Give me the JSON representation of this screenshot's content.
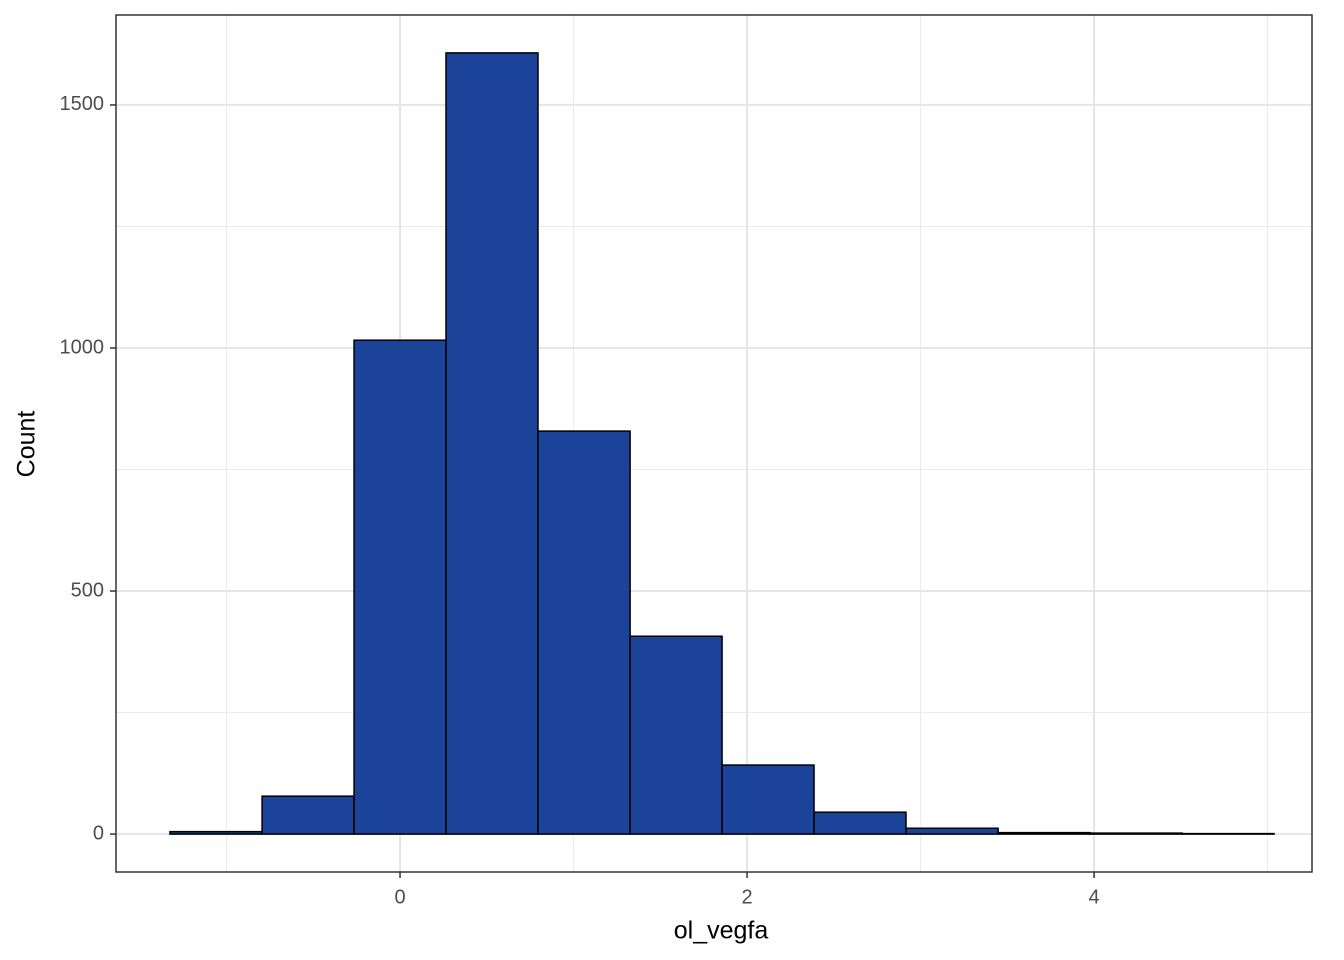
{
  "chart_data": {
    "type": "histogram",
    "x_label": "ol_vegfa",
    "y_label": "Count",
    "bins": [
      -1.326,
      -0.795,
      -0.265,
      0.265,
      0.795,
      1.326,
      1.856,
      2.386,
      2.916,
      3.447,
      3.977,
      4.507,
      5.037
    ],
    "values": [
      5,
      78,
      1016,
      1607,
      829,
      407,
      142,
      45,
      12,
      3,
      2,
      1
    ],
    "color": "#1b4399",
    "xlim": [
      -1.637,
      5.256
    ],
    "ylim": [
      -78,
      1685
    ],
    "xticks": [
      0,
      2,
      4
    ],
    "yticks": [
      0,
      500,
      1000,
      1500
    ],
    "minor_xticks": [
      -1,
      1,
      3,
      5
    ],
    "minor_yticks": [
      250,
      750,
      1250,
      1750
    ],
    "grid": true
  }
}
